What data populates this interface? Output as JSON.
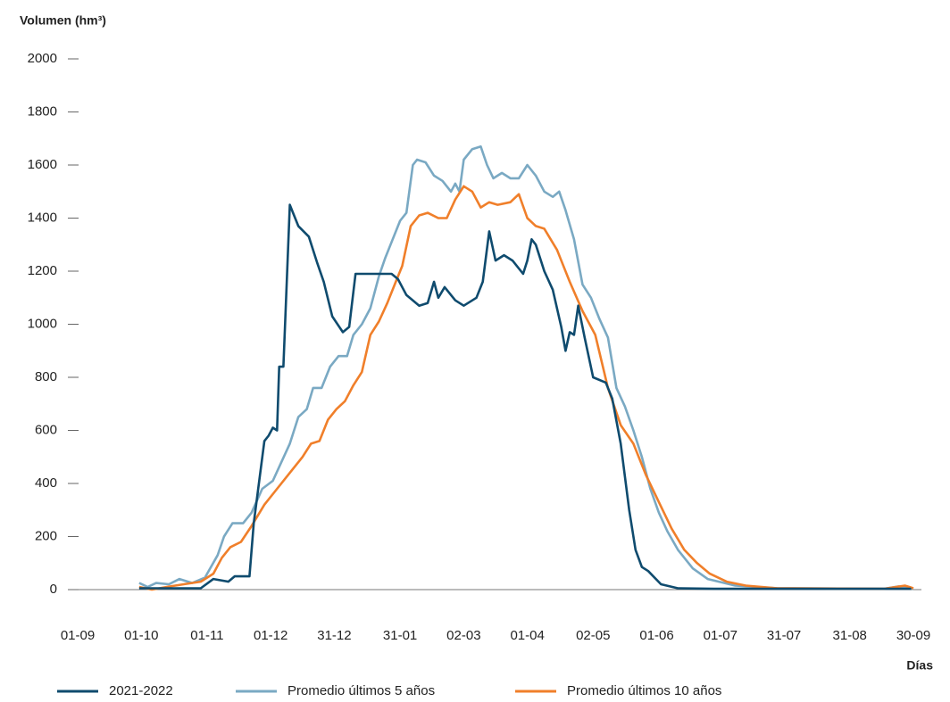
{
  "chart_data": {
    "type": "line",
    "y_label": "Volumen (hm³)",
    "x_label": "Días",
    "xlim": [
      0,
      394
    ],
    "xticks": [
      {
        "value": 0,
        "label": "01-09"
      },
      {
        "value": 30,
        "label": "01-10"
      },
      {
        "value": 61,
        "label": "01-11"
      },
      {
        "value": 91,
        "label": "01-12"
      },
      {
        "value": 121,
        "label": "31-12"
      },
      {
        "value": 152,
        "label": "31-01"
      },
      {
        "value": 182,
        "label": "02-03"
      },
      {
        "value": 212,
        "label": "01-04"
      },
      {
        "value": 243,
        "label": "02-05"
      },
      {
        "value": 273,
        "label": "01-06"
      },
      {
        "value": 303,
        "label": "01-07"
      },
      {
        "value": 333,
        "label": "31-07"
      },
      {
        "value": 364,
        "label": "31-08"
      },
      {
        "value": 394,
        "label": "30-09"
      }
    ],
    "ylim": [
      0,
      2000
    ],
    "yticks": [
      0,
      200,
      400,
      600,
      800,
      1000,
      1200,
      1400,
      1600,
      1800,
      2000
    ],
    "grid": false,
    "legend": "bottom",
    "series": [
      {
        "name": "2021-2022",
        "color": "#0f4b6e",
        "x": [
          29,
          58,
          64,
          71,
          74,
          81,
          83,
          88,
          90,
          92,
          94,
          95,
          97,
          100,
          104,
          109,
          113,
          116,
          120,
          125,
          128,
          131,
          136,
          148,
          151,
          155,
          161,
          165,
          168,
          170,
          173,
          178,
          182,
          188,
          191,
          194,
          197,
          201,
          205,
          210,
          212,
          214,
          216,
          220,
          224,
          228,
          230,
          232,
          234,
          236,
          239,
          243,
          249,
          252,
          256,
          260,
          263,
          266,
          269,
          275,
          283,
          300,
          393
        ],
        "values": [
          5,
          5,
          40,
          30,
          50,
          50,
          250,
          560,
          580,
          610,
          600,
          840,
          840,
          1450,
          1370,
          1330,
          1230,
          1160,
          1030,
          970,
          990,
          1190,
          1190,
          1190,
          1170,
          1110,
          1070,
          1080,
          1160,
          1100,
          1140,
          1090,
          1070,
          1100,
          1160,
          1350,
          1240,
          1260,
          1240,
          1190,
          1240,
          1320,
          1300,
          1200,
          1130,
          990,
          900,
          970,
          960,
          1070,
          950,
          800,
          780,
          720,
          550,
          300,
          150,
          85,
          70,
          20,
          5,
          3,
          3
        ]
      },
      {
        "name": "Promedio últimos 5 años",
        "color": "#7aa9c3",
        "x": [
          29,
          33,
          37,
          43,
          48,
          54,
          60,
          66,
          69,
          73,
          78,
          82,
          87,
          92,
          96,
          100,
          104,
          108,
          111,
          115,
          119,
          123,
          127,
          130,
          134,
          138,
          142,
          145,
          148,
          152,
          155,
          158,
          160,
          164,
          168,
          172,
          176,
          178,
          180,
          182,
          186,
          190,
          193,
          196,
          200,
          204,
          208,
          212,
          216,
          220,
          224,
          227,
          230,
          234,
          238,
          242,
          246,
          250,
          254,
          258,
          262,
          266,
          270,
          274,
          278,
          283,
          290,
          297,
          310,
          330,
          380,
          387,
          394
        ],
        "values": [
          25,
          10,
          25,
          20,
          40,
          25,
          45,
          130,
          200,
          250,
          250,
          290,
          380,
          410,
          480,
          550,
          650,
          680,
          760,
          760,
          840,
          880,
          880,
          960,
          1000,
          1060,
          1180,
          1250,
          1310,
          1390,
          1420,
          1600,
          1620,
          1610,
          1560,
          1540,
          1500,
          1530,
          1500,
          1620,
          1660,
          1670,
          1600,
          1550,
          1570,
          1550,
          1550,
          1600,
          1560,
          1500,
          1480,
          1500,
          1430,
          1320,
          1150,
          1100,
          1020,
          950,
          760,
          690,
          600,
          500,
          380,
          290,
          220,
          150,
          80,
          40,
          15,
          5,
          3,
          12,
          3
        ]
      },
      {
        "name": "Promedio últimos 10 años",
        "color": "#f07f2a",
        "x": [
          29,
          35,
          42,
          50,
          58,
          64,
          68,
          72,
          77,
          82,
          88,
          94,
          100,
          106,
          110,
          114,
          118,
          122,
          126,
          130,
          134,
          138,
          142,
          146,
          150,
          153,
          157,
          161,
          165,
          170,
          174,
          178,
          182,
          186,
          190,
          194,
          198,
          204,
          208,
          212,
          216,
          220,
          226,
          232,
          238,
          244,
          250,
          256,
          262,
          268,
          274,
          280,
          286,
          292,
          298,
          306,
          315,
          330,
          380,
          390,
          394
        ],
        "values": [
          10,
          0,
          10,
          20,
          30,
          60,
          120,
          160,
          180,
          240,
          320,
          380,
          440,
          500,
          550,
          560,
          640,
          680,
          710,
          770,
          820,
          960,
          1010,
          1080,
          1160,
          1220,
          1370,
          1410,
          1420,
          1400,
          1400,
          1470,
          1520,
          1500,
          1440,
          1460,
          1450,
          1460,
          1490,
          1400,
          1370,
          1360,
          1280,
          1160,
          1050,
          960,
          760,
          620,
          550,
          430,
          330,
          230,
          150,
          100,
          60,
          30,
          15,
          5,
          3,
          15,
          5
        ]
      }
    ]
  }
}
